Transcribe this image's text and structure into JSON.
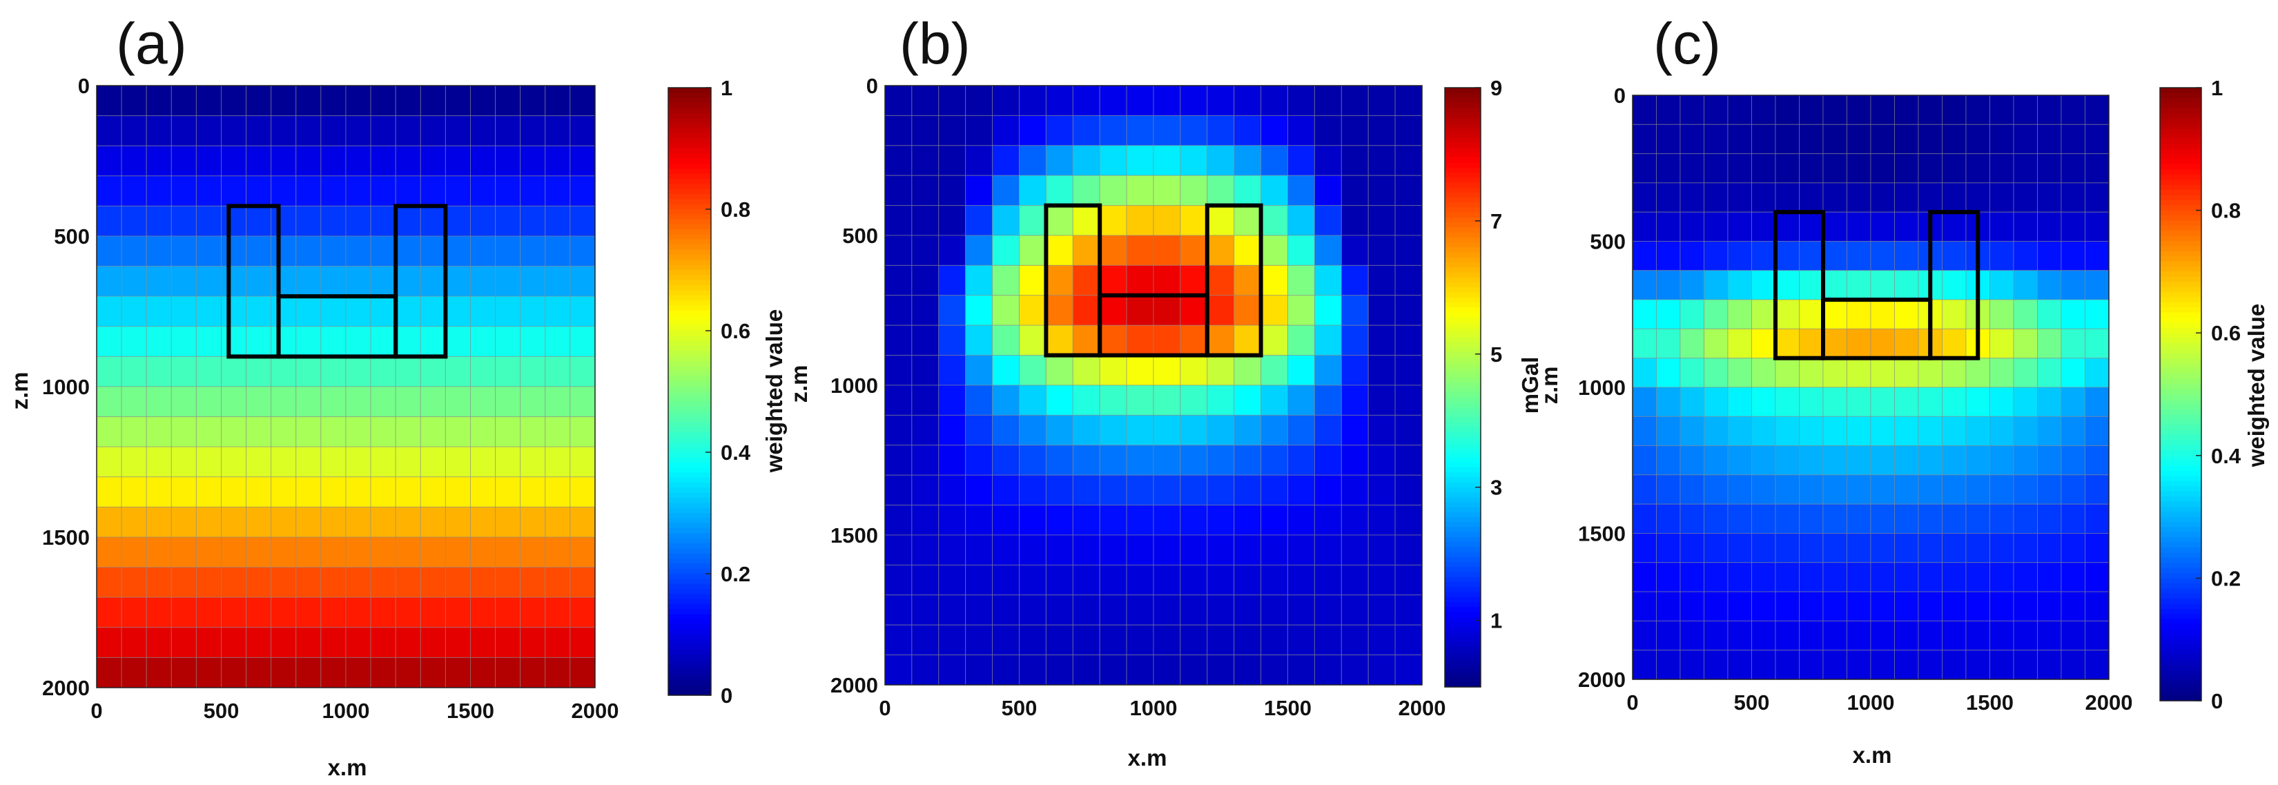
{
  "figure": {
    "panels": [
      {
        "label": "(a)",
        "colorbar_label": "weighted value",
        "xlabel": "x.m",
        "ylabel": "z.m"
      },
      {
        "label": "(b)",
        "colorbar_label": "mGal",
        "xlabel": "x.m",
        "ylabel": "z.m"
      },
      {
        "label": "(c)",
        "colorbar_label": "weighted value",
        "xlabel": "x.m",
        "ylabel": "z.m"
      }
    ]
  },
  "chart_data": [
    {
      "type": "heatmap",
      "title": "(a)",
      "description": "depth weighting function; value increases with depth, uniform along x",
      "xlabel": "x.m",
      "ylabel": "z.m",
      "xlim": [
        0,
        2000
      ],
      "ylim": [
        2000,
        0
      ],
      "grid": {
        "nx": 20,
        "nz": 20,
        "cell_size_m": 100
      },
      "row_z_centers": [
        50,
        150,
        250,
        350,
        450,
        550,
        650,
        750,
        850,
        950,
        1050,
        1150,
        1250,
        1350,
        1450,
        1550,
        1650,
        1750,
        1850,
        1950
      ],
      "row_values": [
        0.02,
        0.06,
        0.1,
        0.14,
        0.18,
        0.24,
        0.29,
        0.34,
        0.39,
        0.44,
        0.49,
        0.54,
        0.59,
        0.64,
        0.7,
        0.75,
        0.8,
        0.85,
        0.9,
        0.95
      ],
      "xticks": [
        "0",
        "500",
        "1000",
        "1500",
        "2000"
      ],
      "yticks": [
        "0",
        "500",
        "1000",
        "1500",
        "2000"
      ],
      "colorbar": {
        "label": "weighted value",
        "min": 0,
        "max": 1,
        "ticks": [
          "0",
          "0.2",
          "0.4",
          "0.6",
          "0.8",
          "1"
        ],
        "colormap": "jet"
      },
      "outline": "U-shaped model: two vertical blocks x 530–730 and 1200–1400 (z 400–900) joined by horizontal block x 730–1200 (z 700–900)"
    },
    {
      "type": "heatmap",
      "title": "(b)",
      "description": "gravity-related anomaly, maximum ~9 mGal centred beneath the U-shaped body",
      "xlabel": "x.m",
      "ylabel": "z.m",
      "xlim": [
        0,
        2000
      ],
      "ylim": [
        2000,
        0
      ],
      "grid": {
        "nx": 20,
        "nz": 20,
        "cell_size_m": 100
      },
      "peak": {
        "x": 1000,
        "z": 700,
        "value": 9.0
      },
      "xticks": [
        "0",
        "500",
        "1000",
        "1500",
        "2000"
      ],
      "yticks": [
        "0",
        "500",
        "1000",
        "1500",
        "2000"
      ],
      "colorbar": {
        "label": "mGal",
        "min": 0,
        "max": 9,
        "ticks": [
          "1",
          "3",
          "5",
          "7",
          "9"
        ],
        "colormap": "jet"
      },
      "outline": "U-shaped model: two vertical blocks x 600–800 and 1200–1400 (z 400–900) joined by horizontal block x 800–1200 (z 700–900)"
    },
    {
      "type": "heatmap",
      "title": "(c)",
      "description": "weighted value concentrated in the 700–1000 m depth band under the U-shaped body",
      "xlabel": "x.m",
      "ylabel": "z.m",
      "xlim": [
        0,
        2000
      ],
      "ylim": [
        2000,
        0
      ],
      "grid": {
        "nx": 20,
        "nz": 20,
        "cell_size_m": 100
      },
      "peak": {
        "x": 1000,
        "z": 800,
        "value": 0.75
      },
      "xticks": [
        "0",
        "500",
        "1000",
        "1500",
        "2000"
      ],
      "yticks": [
        "0",
        "500",
        "1000",
        "1500",
        "2000"
      ],
      "colorbar": {
        "label": "weighted value",
        "min": 0,
        "max": 1,
        "ticks": [
          "0",
          "0.2",
          "0.4",
          "0.6",
          "0.8",
          "1"
        ],
        "colormap": "jet"
      },
      "outline": "U-shaped model: two vertical blocks x 600–800 and 1250–1450 (z 400–900) joined by horizontal block x 800–1250 (z 700–900)"
    }
  ]
}
